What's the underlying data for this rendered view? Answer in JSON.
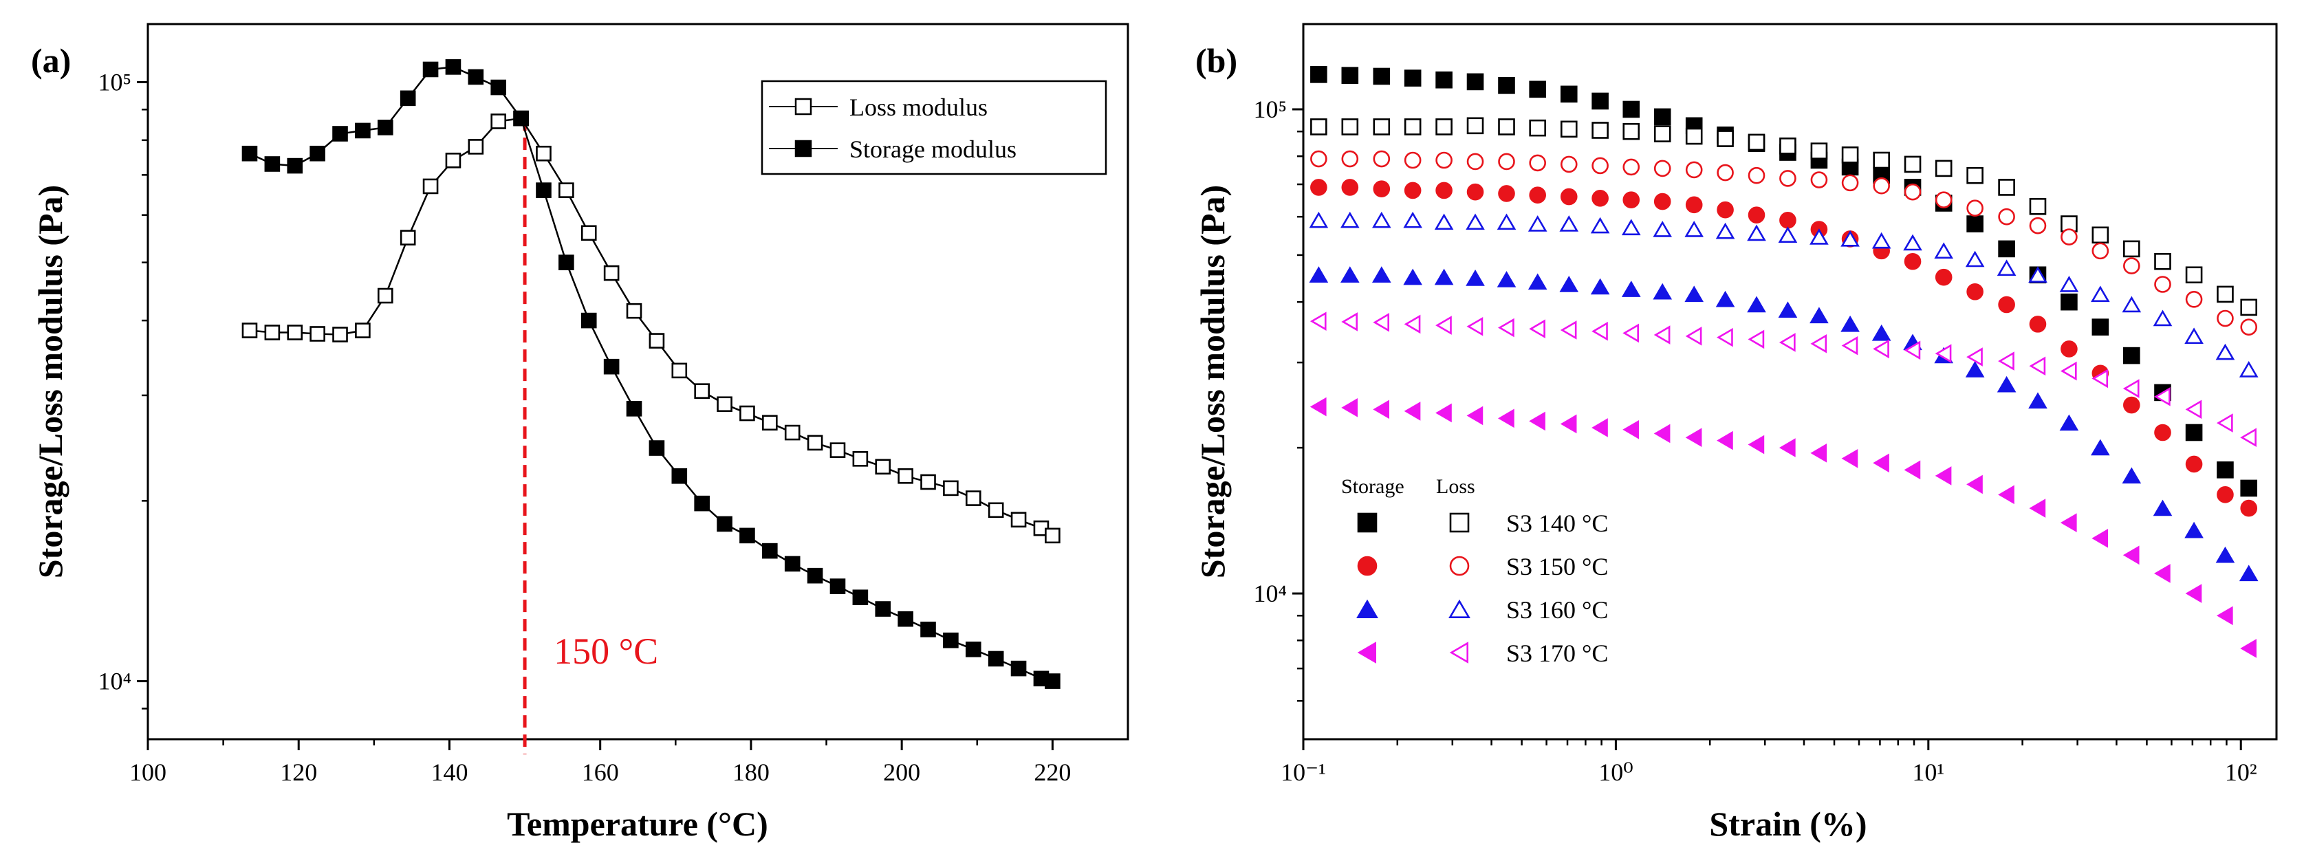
{
  "chart_data": [
    {
      "panel": "(a)",
      "type": "line",
      "xlabel": "Temperature (°C)",
      "ylabel": "Storage/Loss modulus (Pa)",
      "xscale": "linear",
      "yscale": "log",
      "xlim": [
        100,
        230
      ],
      "ylim": [
        8000,
        125000
      ],
      "xticks": [
        100,
        120,
        140,
        160,
        180,
        200,
        220
      ],
      "xtick_labels": [
        "100",
        "120",
        "140",
        "160",
        "180",
        "200",
        "220"
      ],
      "yticks": [
        10000,
        100000
      ],
      "ytick_labels": [
        "10⁴",
        "10⁵"
      ],
      "legend_position": "top-right",
      "series": [
        {
          "name": "Loss modulus",
          "marker": "square-open",
          "color": "#000000",
          "x": [
            113.5,
            116.5,
            119.5,
            122.5,
            125.5,
            128.5,
            131.5,
            134.5,
            137.5,
            140.5,
            143.5,
            146.5,
            149.5,
            152.5,
            155.5,
            158.5,
            161.5,
            164.5,
            167.5,
            170.5,
            173.5,
            176.5,
            179.5,
            182.5,
            185.5,
            188.5,
            191.5,
            194.5,
            197.5,
            200.5,
            203.5,
            206.5,
            209.5,
            212.5,
            215.5,
            218.5,
            220
          ],
          "y": [
            38500,
            38200,
            38200,
            38000,
            37900,
            38500,
            44000,
            55000,
            67000,
            74000,
            78000,
            86000,
            87000,
            76000,
            66000,
            56000,
            48000,
            41500,
            37000,
            33000,
            30500,
            29000,
            28000,
            27000,
            26000,
            25000,
            24300,
            23500,
            22800,
            22000,
            21500,
            21000,
            20200,
            19300,
            18600,
            18000,
            17500
          ]
        },
        {
          "name": "Storage modulus",
          "marker": "square-filled",
          "color": "#000000",
          "x": [
            113.5,
            116.5,
            119.5,
            122.5,
            125.5,
            128.5,
            131.5,
            134.5,
            137.5,
            140.5,
            143.5,
            146.5,
            149.5,
            152.5,
            155.5,
            158.5,
            161.5,
            164.5,
            167.5,
            170.5,
            173.5,
            176.5,
            179.5,
            182.5,
            185.5,
            188.5,
            191.5,
            194.5,
            197.5,
            200.5,
            203.5,
            206.5,
            209.5,
            212.5,
            215.5,
            218.5,
            220
          ],
          "y": [
            76000,
            73000,
            72500,
            76000,
            82000,
            83000,
            84000,
            94000,
            105000,
            106000,
            102000,
            98000,
            87000,
            66000,
            50000,
            40000,
            33500,
            28500,
            24500,
            22000,
            19800,
            18300,
            17500,
            16500,
            15700,
            15000,
            14400,
            13800,
            13200,
            12700,
            12200,
            11700,
            11300,
            10900,
            10500,
            10100,
            10000
          ]
        }
      ],
      "annotations": [
        {
          "text": "150 °C",
          "x": 150,
          "color": "#e8141b",
          "style": "dashed vertical line"
        }
      ]
    },
    {
      "panel": "(b)",
      "type": "scatter",
      "xlabel": "Strain (%)",
      "ylabel": "Storage/Loss modulus (Pa)",
      "xscale": "log",
      "yscale": "log",
      "xlim": [
        0.1,
        130
      ],
      "ylim": [
        5000,
        150000
      ],
      "xticks": [
        0.1,
        1,
        10,
        100
      ],
      "xtick_labels": [
        "10⁻¹",
        "10⁰",
        "10¹",
        "10²"
      ],
      "yticks": [
        10000,
        100000
      ],
      "ytick_labels": [
        "10⁴",
        "10⁵"
      ],
      "legend_position": "lower-left",
      "legend_headers": [
        "Storage",
        "Loss"
      ],
      "x": [
        0.112,
        0.141,
        0.178,
        0.224,
        0.282,
        0.355,
        0.447,
        0.562,
        0.708,
        0.891,
        1.12,
        1.41,
        1.78,
        2.24,
        2.82,
        3.55,
        4.47,
        5.62,
        7.08,
        8.91,
        11.2,
        14.1,
        17.8,
        22.4,
        28.2,
        35.5,
        44.7,
        56.2,
        70.8,
        89.1,
        106
      ],
      "series": [
        {
          "name": "S3 140 °C",
          "kind": "storage",
          "marker": "square-filled",
          "color": "#000000",
          "y": [
            118000,
            117500,
            117000,
            116000,
            115000,
            114000,
            112000,
            110000,
            107500,
            104000,
            100000,
            96500,
            92500,
            88500,
            85000,
            81500,
            78500,
            76000,
            73000,
            69000,
            64000,
            58000,
            51500,
            45500,
            40000,
            35500,
            31000,
            26000,
            21500,
            18000,
            16500
          ]
        },
        {
          "name": "S3 140 °C",
          "kind": "loss",
          "marker": "square-open",
          "color": "#000000",
          "y": [
            92000,
            92000,
            92000,
            92000,
            92000,
            92500,
            92000,
            91500,
            91000,
            90500,
            90000,
            89000,
            88000,
            87000,
            85500,
            84000,
            82000,
            80500,
            78500,
            77000,
            75500,
            73000,
            69000,
            63000,
            58000,
            55000,
            51500,
            48500,
            45500,
            41500,
            39000
          ]
        },
        {
          "name": "S3 150 °C",
          "kind": "storage",
          "marker": "circle-filled",
          "color": "#e8141b",
          "y": [
            69000,
            69000,
            68500,
            68000,
            68000,
            67500,
            67000,
            66500,
            66000,
            65500,
            65000,
            64500,
            63500,
            62000,
            60500,
            59000,
            56500,
            54000,
            51000,
            48500,
            45000,
            42000,
            39500,
            36000,
            32000,
            28500,
            24500,
            21500,
            18500,
            16000,
            15000
          ]
        },
        {
          "name": "S3 150 °C",
          "kind": "loss",
          "marker": "circle-open",
          "color": "#e8141b",
          "y": [
            79000,
            79000,
            79000,
            78500,
            78500,
            78000,
            78000,
            77500,
            77000,
            76500,
            76000,
            75500,
            75000,
            74000,
            73000,
            72000,
            71500,
            70500,
            69500,
            67500,
            65000,
            62500,
            60000,
            57500,
            54500,
            51000,
            47500,
            43500,
            40500,
            37000,
            35500
          ]
        },
        {
          "name": "S3 160 °C",
          "kind": "storage",
          "marker": "triangle-up-filled",
          "color": "#1414e6",
          "y": [
            45500,
            45500,
            45500,
            45000,
            45000,
            44800,
            44500,
            44000,
            43500,
            43000,
            42500,
            42000,
            41500,
            40500,
            39500,
            38500,
            37500,
            36000,
            34500,
            33000,
            31000,
            29000,
            27000,
            25000,
            22500,
            20000,
            17500,
            15000,
            13500,
            12000,
            11000
          ]
        },
        {
          "name": "S3 160 °C",
          "kind": "loss",
          "marker": "triangle-up-open",
          "color": "#1414e6",
          "y": [
            59000,
            59000,
            59000,
            59000,
            58500,
            58500,
            58500,
            58000,
            58000,
            57500,
            57000,
            56500,
            56500,
            56000,
            55500,
            55000,
            54500,
            54000,
            53500,
            53000,
            51000,
            49000,
            47000,
            45500,
            43500,
            41500,
            39500,
            37000,
            34000,
            31500,
            29000
          ]
        },
        {
          "name": "S3 170 °C",
          "kind": "storage",
          "marker": "triangle-left-filled",
          "color": "#ef14ef",
          "y": [
            24300,
            24200,
            24000,
            23800,
            23600,
            23300,
            23000,
            22700,
            22400,
            22000,
            21800,
            21400,
            21000,
            20700,
            20300,
            20000,
            19500,
            19000,
            18600,
            18000,
            17500,
            16800,
            16000,
            15000,
            14000,
            13000,
            12000,
            11000,
            10000,
            9000,
            7700
          ]
        },
        {
          "name": "S3 170 °C",
          "kind": "loss",
          "marker": "triangle-left-open",
          "color": "#ef14ef",
          "y": [
            36500,
            36400,
            36300,
            36000,
            35800,
            35600,
            35400,
            35200,
            35000,
            34800,
            34500,
            34200,
            34000,
            33800,
            33500,
            33000,
            32800,
            32500,
            32000,
            31800,
            31300,
            30800,
            30200,
            29500,
            28800,
            27800,
            26500,
            25500,
            24000,
            22500,
            21000
          ]
        }
      ]
    }
  ]
}
